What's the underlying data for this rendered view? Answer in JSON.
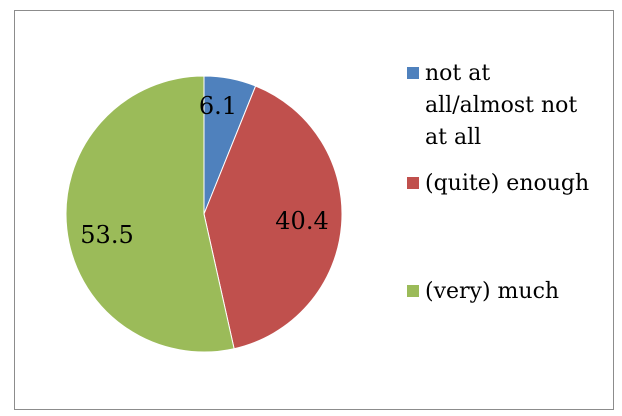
{
  "chart_data": {
    "type": "pie",
    "slices": [
      {
        "label": "not at all/almost not at all",
        "value": 6.1,
        "display": "6.1",
        "color": "#4f81bd"
      },
      {
        "label": "(quite) enough",
        "value": 40.4,
        "display": "40.4",
        "color": "#c0504d"
      },
      {
        "label": "(very) much",
        "value": 53.5,
        "display": "53.5",
        "color": "#9bbb59"
      }
    ],
    "legend_position": "right"
  }
}
